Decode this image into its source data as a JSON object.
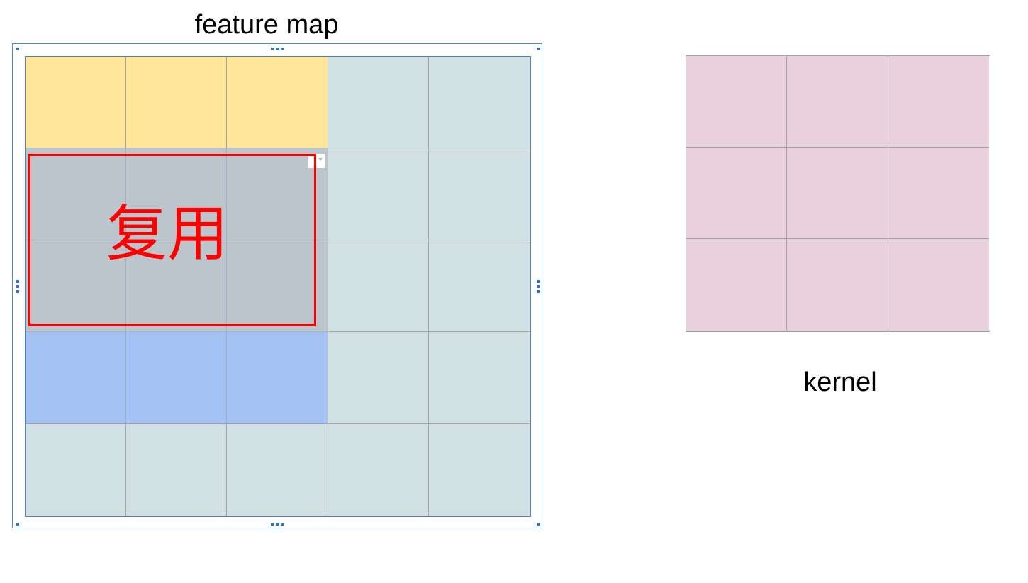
{
  "feature_map": {
    "title": "feature map",
    "rows": 5,
    "cols": 5,
    "cell_colors": [
      [
        "#ffe599",
        "#ffe599",
        "#ffe599",
        "#d0e0e3",
        "#d0e0e3"
      ],
      [
        "#bcc4cc",
        "#bcc4cc",
        "#bcc4cc",
        "#d0e0e3",
        "#d0e0e3"
      ],
      [
        "#bcc4cc",
        "#bcc4cc",
        "#bcc4cc",
        "#d0e0e3",
        "#d0e0e3"
      ],
      [
        "#a4c2f4",
        "#a4c2f4",
        "#a4c2f4",
        "#d0e0e3",
        "#d0e0e3"
      ],
      [
        "#d0e0e3",
        "#d0e0e3",
        "#d0e0e3",
        "#d0e0e3",
        "#d0e0e3"
      ]
    ]
  },
  "kernel": {
    "label": "kernel",
    "rows": 3,
    "cols": 3,
    "color": "#ead1dc"
  },
  "reuse_region": {
    "label": "复用",
    "color": "#ff0000"
  },
  "colors": {
    "grid_line": "#a3a3a3",
    "selection": "#3f7fd6"
  }
}
